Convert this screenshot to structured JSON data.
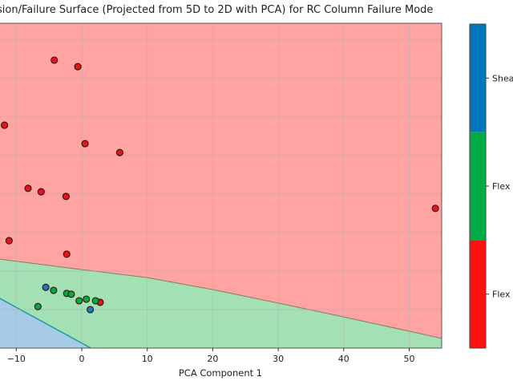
{
  "chart_data": {
    "type": "scatter",
    "title": "sion/Failure Surface (Projected from 5D to 2D with PCA) for RC Column Failure Mode",
    "xlabel": "PCA Component 1",
    "ylabel": "",
    "xlim": [
      -12.5,
      55
    ],
    "x_ticks": [
      -10,
      0,
      10,
      20,
      30,
      40,
      50
    ],
    "x_tick_labels": [
      "−10",
      "0",
      "10",
      "20",
      "30",
      "40",
      "50"
    ],
    "y_unit_note": "y tick labels not visible; y values in gridline-step units from plot bottom",
    "ylim": [
      0,
      8.45
    ],
    "y_grid": [
      1,
      2,
      3,
      4,
      5,
      6,
      7,
      8
    ],
    "grid": true,
    "colors": {
      "red_region": "#ffa3a3",
      "green_region": "#a3e0b4",
      "blue_region": "#a6cbe6",
      "red_point": "#e8141c",
      "green_point": "#0ea83a",
      "blue_point": "#1f77b4",
      "boundary_rg": "#8a7a5a",
      "boundary_gb": "#1f9a9a"
    },
    "boundaries": {
      "red_green": [
        [
          -12.5,
          2.31
        ],
        [
          0,
          2.04
        ],
        [
          10,
          1.83
        ],
        [
          20,
          1.52
        ],
        [
          30,
          1.17
        ],
        [
          40,
          0.81
        ],
        [
          50,
          0.44
        ],
        [
          55,
          0.25
        ]
      ],
      "green_blue": [
        [
          -12.5,
          1.29
        ],
        [
          1.4,
          0
        ]
      ]
    },
    "series": [
      {
        "name": "Flexure (red)",
        "color": "#e8141c",
        "points": [
          [
            -4.2,
            7.48
          ],
          [
            -0.6,
            7.31
          ],
          [
            -11.8,
            5.79
          ],
          [
            0.5,
            5.31
          ],
          [
            5.8,
            5.08
          ],
          [
            -8.2,
            4.15
          ],
          [
            -6.2,
            4.06
          ],
          [
            -2.4,
            3.94
          ],
          [
            -11.1,
            2.79
          ],
          [
            -2.3,
            2.44
          ],
          [
            54.0,
            3.63
          ],
          [
            2.8,
            1.19
          ]
        ]
      },
      {
        "name": "Flexure-Shear (green)",
        "color": "#0ea83a",
        "points": [
          [
            -4.3,
            1.5
          ],
          [
            -2.3,
            1.42
          ],
          [
            -1.6,
            1.4
          ],
          [
            -0.4,
            1.23
          ],
          [
            0.7,
            1.27
          ],
          [
            2.1,
            1.23
          ],
          [
            -6.7,
            1.08
          ]
        ]
      },
      {
        "name": "Shear (blue)",
        "color": "#1f77b4",
        "points": [
          [
            -5.5,
            1.58
          ],
          [
            1.3,
            1.0
          ]
        ]
      }
    ],
    "colorbar": {
      "segments": [
        {
          "label": "Shea",
          "color": "#0077bb"
        },
        {
          "label": "Flex",
          "color": "#00aa44"
        },
        {
          "label": "Flex",
          "color": "#ff1111"
        }
      ]
    }
  }
}
